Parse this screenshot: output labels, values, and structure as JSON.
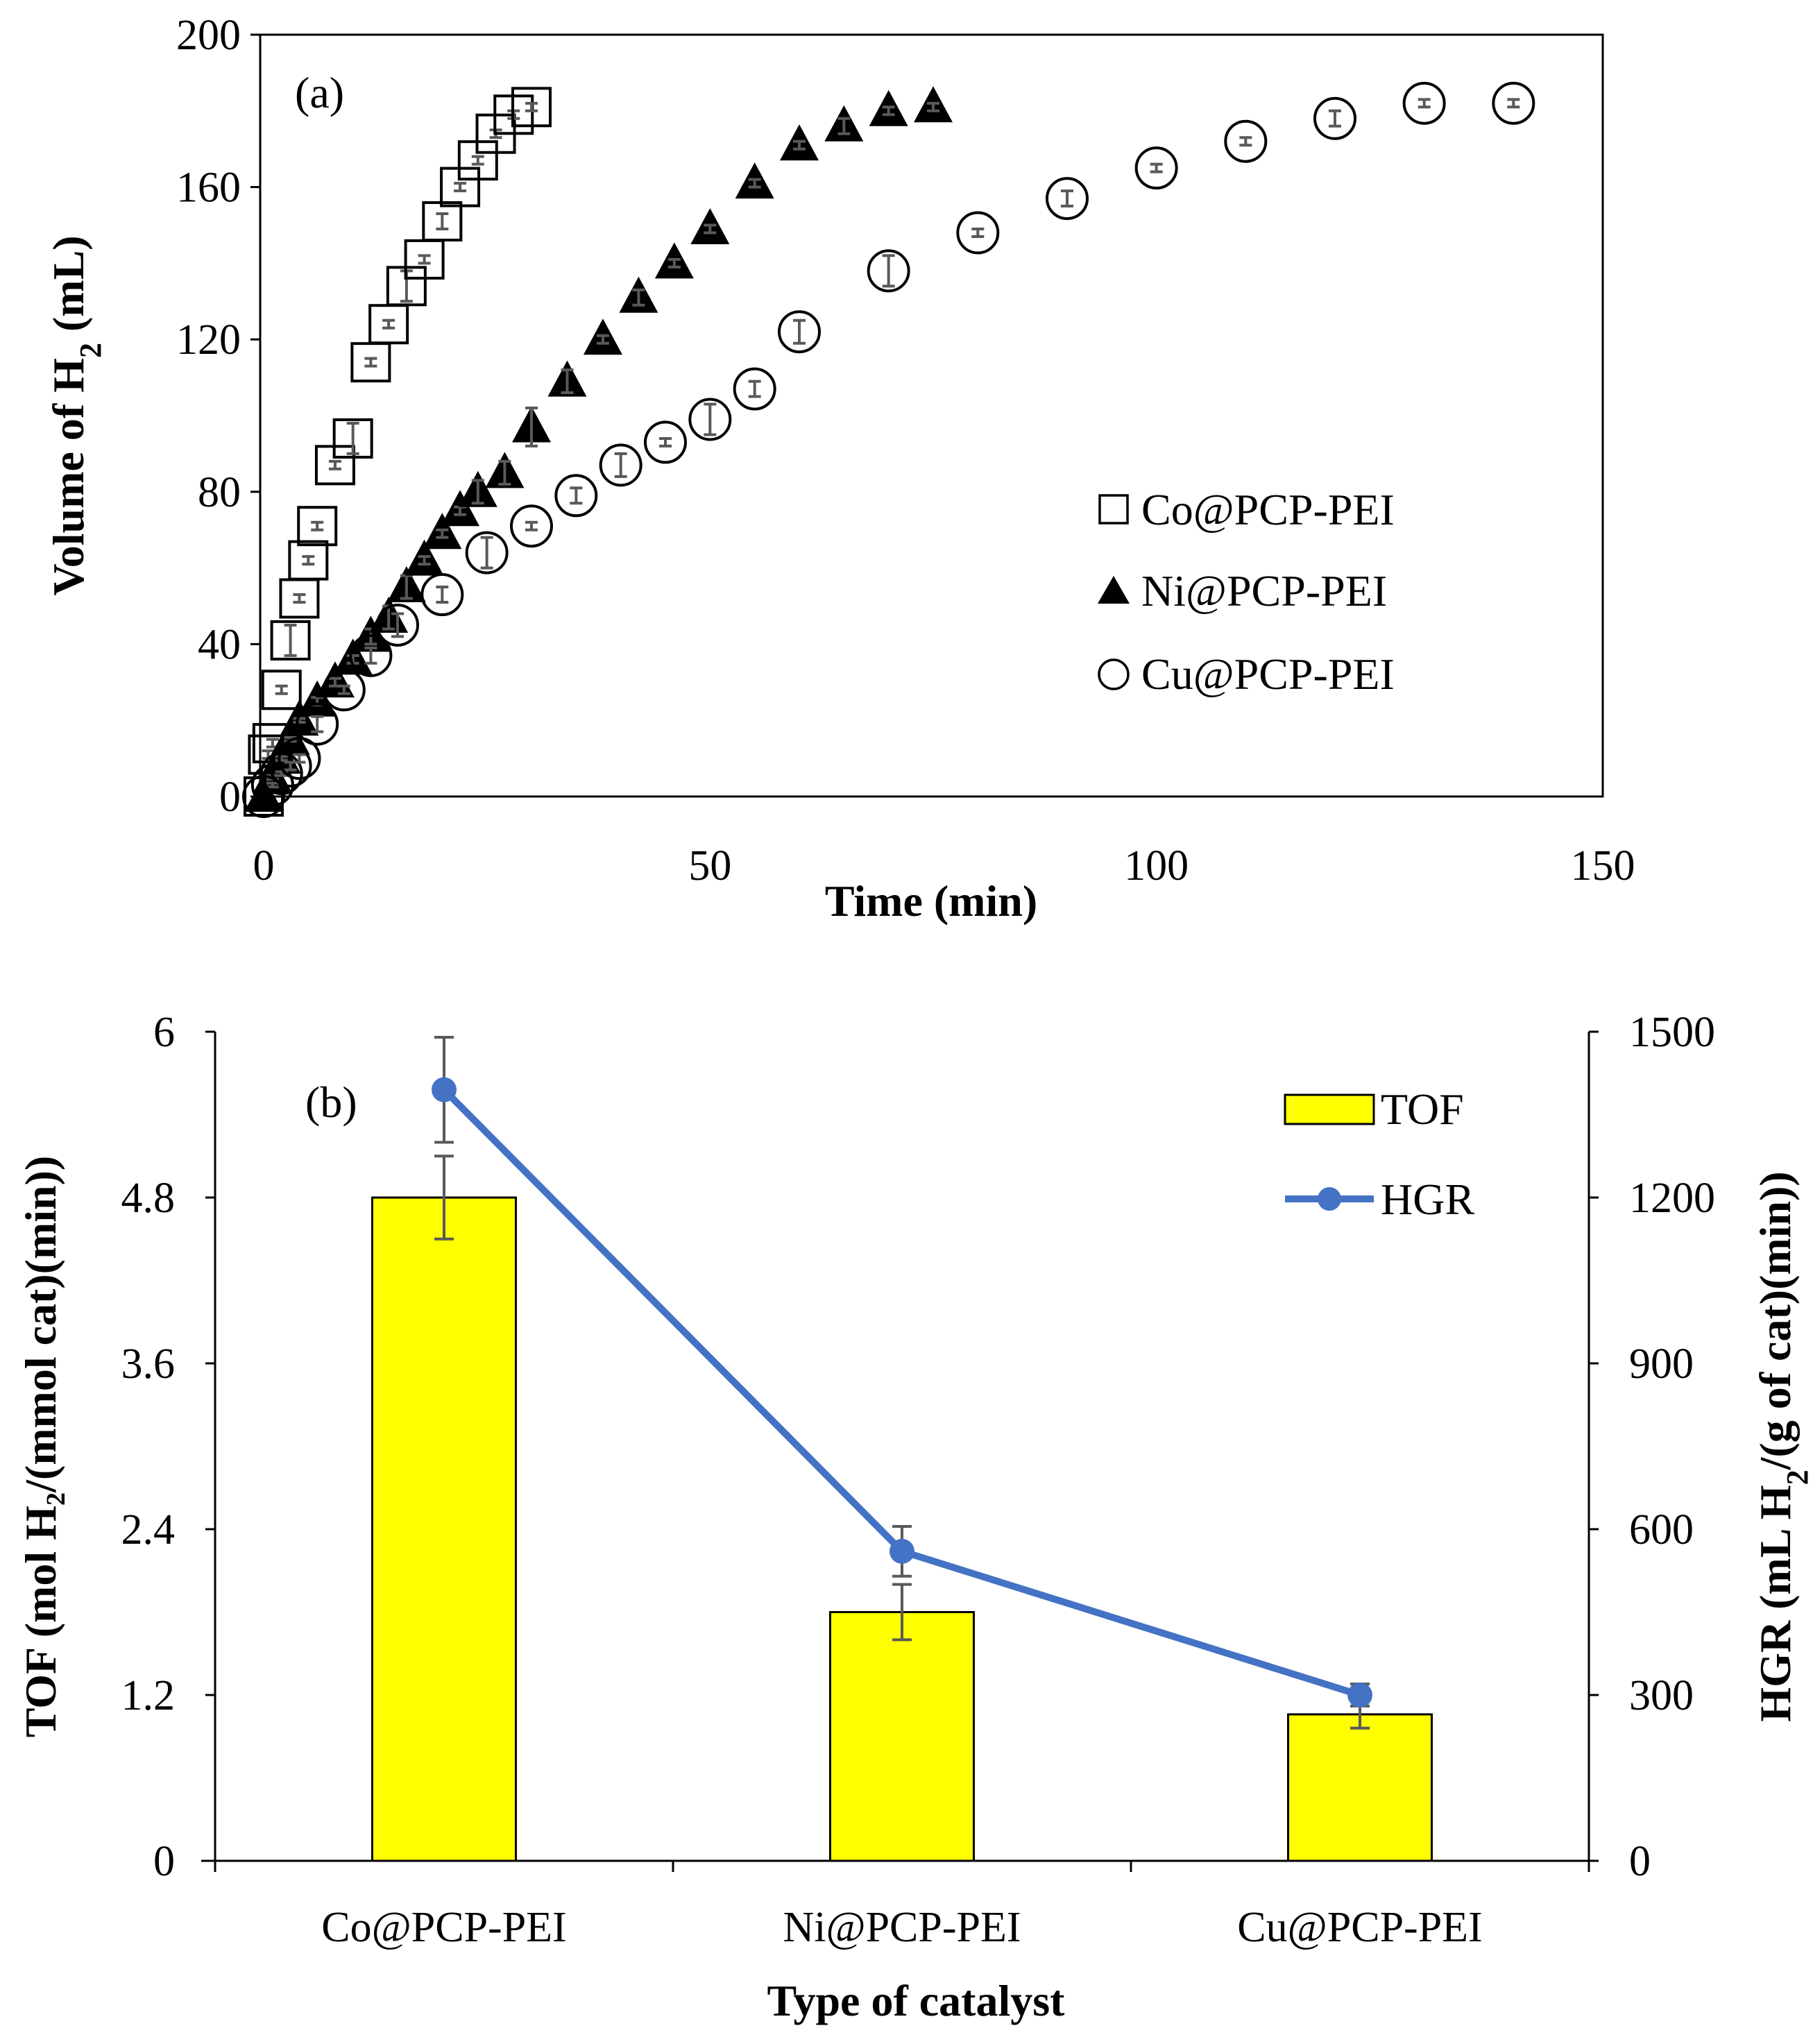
{
  "chart_data": [
    {
      "type": "scatter",
      "panel_label": "(a)",
      "xlabel": "Time (min)",
      "ylabel": "Volume of H2 (mL)",
      "ylabel_main": "Volume of H",
      "ylabel_sub": "2",
      "ylabel_tail": " (mL)",
      "xlim": [
        0,
        150
      ],
      "ylim": [
        0,
        200
      ],
      "xticks": [
        "0",
        "50",
        "100",
        "150"
      ],
      "yticks": [
        "0",
        "40",
        "80",
        "120",
        "160",
        "200"
      ],
      "legend_position": "right-middle",
      "series": [
        {
          "name": "Co@PCP-PEI",
          "marker": "square-open",
          "x": [
            0,
            0.5,
            1,
            2,
            3,
            4,
            5,
            6,
            8,
            10,
            12,
            14,
            16,
            18,
            20,
            22,
            24,
            26,
            28,
            30
          ],
          "y": [
            0,
            11,
            14,
            28,
            41,
            52,
            62,
            71,
            87,
            94,
            114,
            124,
            134,
            141,
            151,
            160,
            167,
            174,
            179,
            181
          ],
          "err": [
            0,
            1,
            1,
            1,
            4,
            1,
            1,
            1,
            1,
            4,
            1,
            1,
            4,
            1,
            2,
            1,
            1,
            1,
            1,
            1
          ]
        },
        {
          "name": "Ni@PCP-PEI",
          "marker": "triangle-filled",
          "x": [
            0,
            1,
            2,
            3,
            4,
            6,
            8,
            10,
            12,
            14,
            16,
            18,
            20,
            22,
            24,
            27,
            30,
            34,
            38,
            42,
            46,
            50,
            55,
            60,
            65,
            70,
            75
          ],
          "y": [
            0,
            5,
            10,
            15,
            20,
            25,
            30,
            36,
            42,
            47,
            55,
            62,
            69,
            75,
            80,
            85,
            97,
            109,
            120,
            131,
            140,
            149,
            161,
            171,
            176,
            180,
            181
          ],
          "err": [
            0,
            0.5,
            0.5,
            0.5,
            0.5,
            1,
            1,
            1,
            2,
            3,
            3,
            1,
            1,
            1,
            3,
            3,
            5,
            3,
            1,
            2,
            1,
            1,
            1,
            1,
            2,
            1,
            1
          ]
        },
        {
          "name": "Cu@PCP-PEI",
          "marker": "circle-open",
          "x": [
            0,
            1,
            2,
            3,
            4,
            6,
            9,
            12,
            15,
            20,
            25,
            30,
            35,
            40,
            45,
            50,
            55,
            60,
            70,
            80,
            90,
            100,
            110,
            120,
            130,
            140
          ],
          "y": [
            0,
            3,
            6,
            8,
            10,
            19,
            28,
            37,
            45,
            53,
            64,
            71,
            79,
            87,
            93,
            99,
            107,
            122,
            138,
            148,
            157,
            165,
            172,
            178,
            182,
            182
          ],
          "err": [
            0,
            0.5,
            0.5,
            1,
            1,
            2,
            1,
            2,
            3,
            2,
            4,
            1,
            2,
            3,
            1,
            4,
            2,
            3,
            4,
            1,
            2,
            1,
            1,
            2,
            1,
            1
          ]
        }
      ]
    },
    {
      "type": "bar",
      "panel_label": "(b)",
      "xlabel": "Type of catalyst",
      "ylabel": "TOF (mol H₂/(mmol cat)(min))",
      "y2label": "HGR (mL H2/(g of cat)(min))",
      "y2label_main": "HGR (mL H",
      "y2label_sub": "2",
      "y2label_tail": "/(g of cat)(min))",
      "categories": [
        "Co@PCP-PEI",
        "Ni@PCP-PEI",
        "Cu@PCP-PEI"
      ],
      "ylim": [
        0,
        6
      ],
      "y2lim": [
        0,
        1500
      ],
      "yticks": [
        "0",
        "1.2",
        "2.4",
        "3.6",
        "4.8",
        "6"
      ],
      "y2ticks": [
        "0",
        "300",
        "600",
        "900",
        "1200",
        "1500"
      ],
      "legend_position": "top-right",
      "series": [
        {
          "name": "TOF",
          "kind": "bar",
          "axis": "left",
          "color": "#FFFF00",
          "values": [
            4.8,
            1.8,
            1.06
          ],
          "err": [
            0.3,
            0.2,
            0.1
          ]
        },
        {
          "name": "HGR",
          "kind": "line",
          "axis": "right",
          "color": "#4472C4",
          "values": [
            1395,
            560,
            300
          ],
          "err": [
            95,
            45,
            20
          ]
        }
      ]
    }
  ]
}
